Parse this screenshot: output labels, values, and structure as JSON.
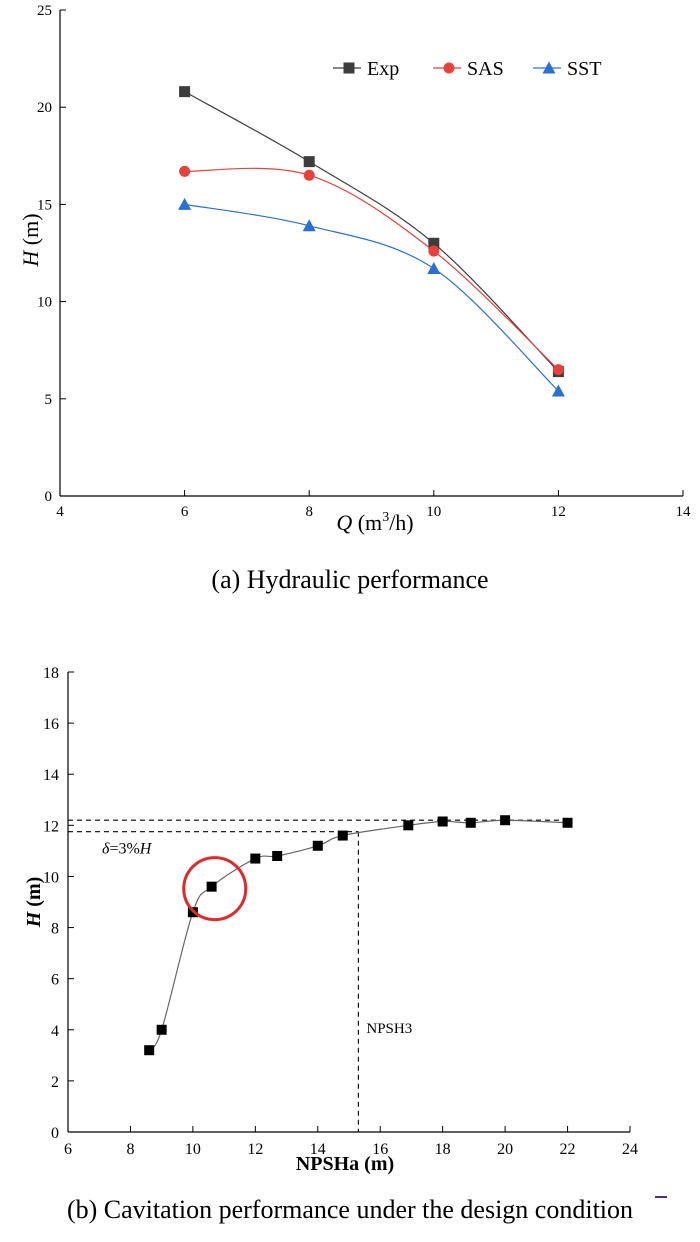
{
  "captions": {
    "a": "(a) Hydraulic performance",
    "b": "(b) Cavitation performance under the design condition"
  },
  "chart_data": [
    {
      "id": "a",
      "type": "line",
      "xlim": [
        4,
        14
      ],
      "ylim": [
        0,
        25
      ],
      "xticks": [
        "4",
        "6",
        "8",
        "10",
        "12",
        "14"
      ],
      "yticks": [
        "0",
        "5",
        "10",
        "15",
        "20",
        "25"
      ],
      "xlabel": {
        "italic": "Q",
        "rest": " (m",
        "sup": "3",
        "after": "/h)"
      },
      "ylabel": {
        "italic": "H",
        "rest": " (m)"
      },
      "grid": false,
      "legend_position": "top-right",
      "series": [
        {
          "name": "Exp",
          "color": "#3d3d3d",
          "marker": "square",
          "x": [
            6,
            8,
            10,
            12
          ],
          "y": [
            20.8,
            17.2,
            13.0,
            6.4
          ]
        },
        {
          "name": "SAS",
          "color": "#e8413c",
          "marker": "circle",
          "x": [
            6,
            8,
            10,
            12
          ],
          "y": [
            16.7,
            16.5,
            12.6,
            6.5
          ]
        },
        {
          "name": "SST",
          "color": "#2a6fd6",
          "marker": "triangle",
          "x": [
            6,
            8,
            10,
            12
          ],
          "y": [
            15.0,
            13.9,
            11.7,
            5.4
          ]
        }
      ]
    },
    {
      "id": "b",
      "type": "line",
      "xlim": [
        6,
        24
      ],
      "ylim": [
        0,
        18
      ],
      "xticks": [
        "6",
        "8",
        "10",
        "12",
        "14",
        "16",
        "18",
        "20",
        "22",
        "24"
      ],
      "yticks": [
        "0",
        "2",
        "4",
        "6",
        "8",
        "10",
        "12",
        "14",
        "16",
        "18"
      ],
      "xlabel": "NPSHa (m)",
      "ylabel": {
        "italic": "H",
        "rest": " (m)"
      },
      "grid": false,
      "series": [
        {
          "color": "#000000",
          "marker": "square",
          "x": [
            8.6,
            9.0,
            10.0,
            10.6,
            12.0,
            12.7,
            14.0,
            14.8,
            16.9,
            18.0,
            18.9,
            20.0,
            22.0
          ],
          "y": [
            3.2,
            4.0,
            8.6,
            9.6,
            10.7,
            10.8,
            11.2,
            11.6,
            12.0,
            12.15,
            12.1,
            12.2,
            12.1
          ]
        }
      ],
      "reference_lines": {
        "h_top": 12.2,
        "h_low": 11.75,
        "npsh3": 15.3
      },
      "annotations": {
        "delta": {
          "italic_a": "δ",
          "rest": "=3%",
          "italic_b": "H"
        },
        "npsh3_label": "NPSH3",
        "highlight": {
          "x": 10.7,
          "y": 9.6
        }
      }
    }
  ]
}
